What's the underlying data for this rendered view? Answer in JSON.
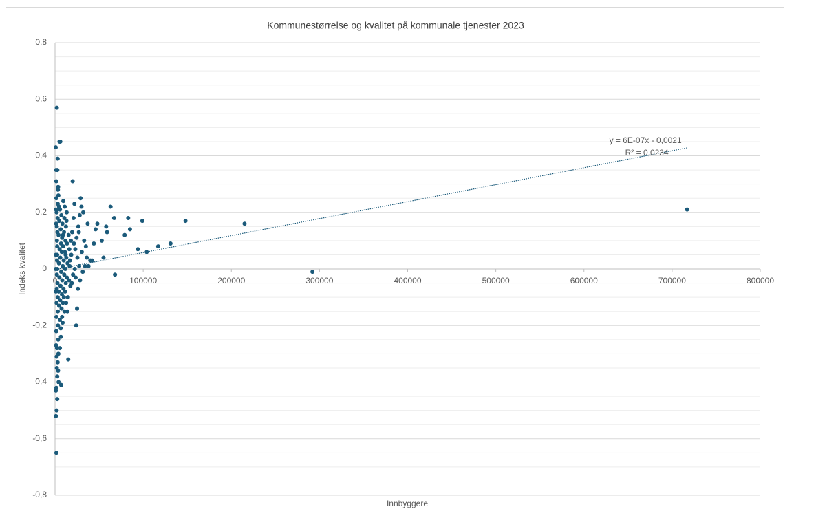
{
  "chart_data": {
    "type": "scatter",
    "title": "Kommunestørrelse og kvalitet på kommunale tjenester 2023",
    "xlabel": "Innbyggere",
    "ylabel": "Indeks kvalitet",
    "color": "#1b5a7a",
    "x": [
      717000,
      292000,
      215000,
      148000,
      131000,
      117000,
      104000,
      99000,
      94000,
      85000,
      83000,
      79000,
      68000,
      67000,
      63000,
      59000,
      58000,
      55000,
      53000,
      48000,
      46000,
      44000,
      42000,
      40000,
      38000,
      37000,
      33000,
      32000,
      30000,
      29000,
      28000,
      27000,
      26000,
      25000,
      24000,
      23000,
      22000,
      21000,
      20000,
      19000,
      18000,
      17000,
      15000,
      14000,
      13000,
      12000,
      11000,
      10000,
      9000,
      8000,
      7000,
      6000,
      5000,
      4000,
      3500,
      3000,
      2500,
      2000,
      1800,
      1500,
      1200,
      1000,
      800,
      1500,
      1800,
      2000,
      2200,
      2400,
      2600,
      2800,
      3000,
      3200,
      3400,
      3600,
      3800,
      1200,
      1400,
      1600,
      1700,
      1900,
      2100,
      2300,
      2500,
      2700,
      2900,
      3100,
      3300,
      4000,
      4200,
      4400,
      4600,
      4800,
      5000,
      5200,
      5400,
      5600,
      5800,
      6000,
      6200,
      6400,
      6600,
      6800,
      7000,
      7200,
      7400,
      7600,
      7800,
      8000,
      8200,
      8400,
      8600,
      8800,
      9000,
      9200,
      9400,
      9600,
      9800,
      10200,
      10400,
      10600,
      10800,
      11200,
      11400,
      11600,
      11800,
      12200,
      12400,
      12600,
      12800,
      13200,
      13400,
      13600,
      14200,
      14600,
      15400,
      15800,
      16200,
      16600,
      17400,
      18400,
      19400,
      20400,
      21400,
      22400,
      23400,
      24400,
      25400,
      26400,
      27400,
      28400,
      30400,
      31400,
      34000,
      35000,
      36000,
      2000,
      2500,
      3000,
      1500,
      1000,
      3500,
      1800,
      2200,
      2600,
      1400,
      3800,
      4500,
      5500,
      6500,
      1100,
      1300,
      900,
      1000,
      800
    ],
    "values": [
      0.21,
      -0.01,
      0.16,
      0.17,
      0.09,
      0.08,
      0.06,
      0.17,
      0.07,
      0.14,
      0.18,
      0.12,
      -0.02,
      0.18,
      0.22,
      0.13,
      0.15,
      0.04,
      0.1,
      0.16,
      0.14,
      0.09,
      0.03,
      0.03,
      0.01,
      0.16,
      0.1,
      0.2,
      0.22,
      0.25,
      0.19,
      0.13,
      -0.07,
      -0.14,
      -0.2,
      0.07,
      0.23,
      0.18,
      0.31,
      -0.05,
      0.1,
      0.03,
      -0.32,
      -0.15,
      0.17,
      0.05,
      0.22,
      -0.1,
      0.12,
      -0.17,
      -0.41,
      0.45,
      0.45,
      -0.4,
      0.29,
      0.39,
      -0.46,
      0.57,
      -0.5,
      -0.65,
      0.35,
      -0.52,
      0.43,
      0.25,
      0.2,
      0.15,
      0.1,
      0.05,
      0.0,
      -0.05,
      -0.1,
      -0.15,
      -0.2,
      -0.25,
      -0.3,
      -0.27,
      -0.22,
      -0.17,
      -0.12,
      -0.07,
      -0.02,
      0.03,
      0.08,
      0.13,
      0.18,
      0.23,
      0.28,
      0.12,
      -0.08,
      0.02,
      -0.13,
      0.17,
      -0.03,
      0.07,
      -0.18,
      0.21,
      -0.11,
      0.04,
      -0.06,
      0.14,
      -0.24,
      0.09,
      -0.01,
      0.19,
      -0.14,
      0.06,
      -0.09,
      0.11,
      -0.04,
      0.16,
      -0.19,
      0.01,
      -0.12,
      0.08,
      0.24,
      -0.07,
      0.03,
      0.13,
      -0.02,
      0.18,
      -0.15,
      0.06,
      -0.08,
      0.0,
      0.1,
      -0.05,
      0.15,
      -0.12,
      0.04,
      0.2,
      -0.03,
      0.09,
      0.02,
      -0.1,
      0.12,
      -0.04,
      0.07,
      0.01,
      -0.06,
      0.05,
      0.13,
      -0.02,
      0.09,
      0.0,
      -0.03,
      0.11,
      0.04,
      0.15,
      0.01,
      -0.04,
      0.06,
      -0.01,
      0.01,
      0.08,
      0.04,
      -0.35,
      -0.38,
      -0.33,
      -0.42,
      -0.43,
      -0.36,
      -0.31,
      -0.28,
      0.35,
      0.31,
      0.26,
      0.22,
      -0.28,
      -0.21,
      0.21,
      0.16,
      0.05,
      -0.08,
      0.0
    ],
    "xlim": [
      0,
      800000
    ],
    "xticks": [
      0,
      100000,
      200000,
      300000,
      400000,
      500000,
      600000,
      700000,
      800000
    ],
    "ylim": [
      -0.8,
      0.8
    ],
    "yticks": [
      {
        "value": -0.8,
        "label": "-0,8"
      },
      {
        "value": -0.6,
        "label": "-0,6"
      },
      {
        "value": -0.4,
        "label": "-0,4"
      },
      {
        "value": -0.2,
        "label": "-0,2"
      },
      0,
      {
        "value": 0.2,
        "label": "0,2"
      },
      {
        "value": 0.4,
        "label": "0,4"
      },
      {
        "value": 0.6,
        "label": "0,6"
      },
      {
        "value": 0.8,
        "label": "0,8"
      }
    ],
    "grid": true,
    "minor_grid_per_tick": 4,
    "trendline": {
      "slope": 6e-07,
      "intercept": -0.0021,
      "label": "y = 6E-07x - 0,0021",
      "r2_label": "R² = 0,0234"
    }
  }
}
